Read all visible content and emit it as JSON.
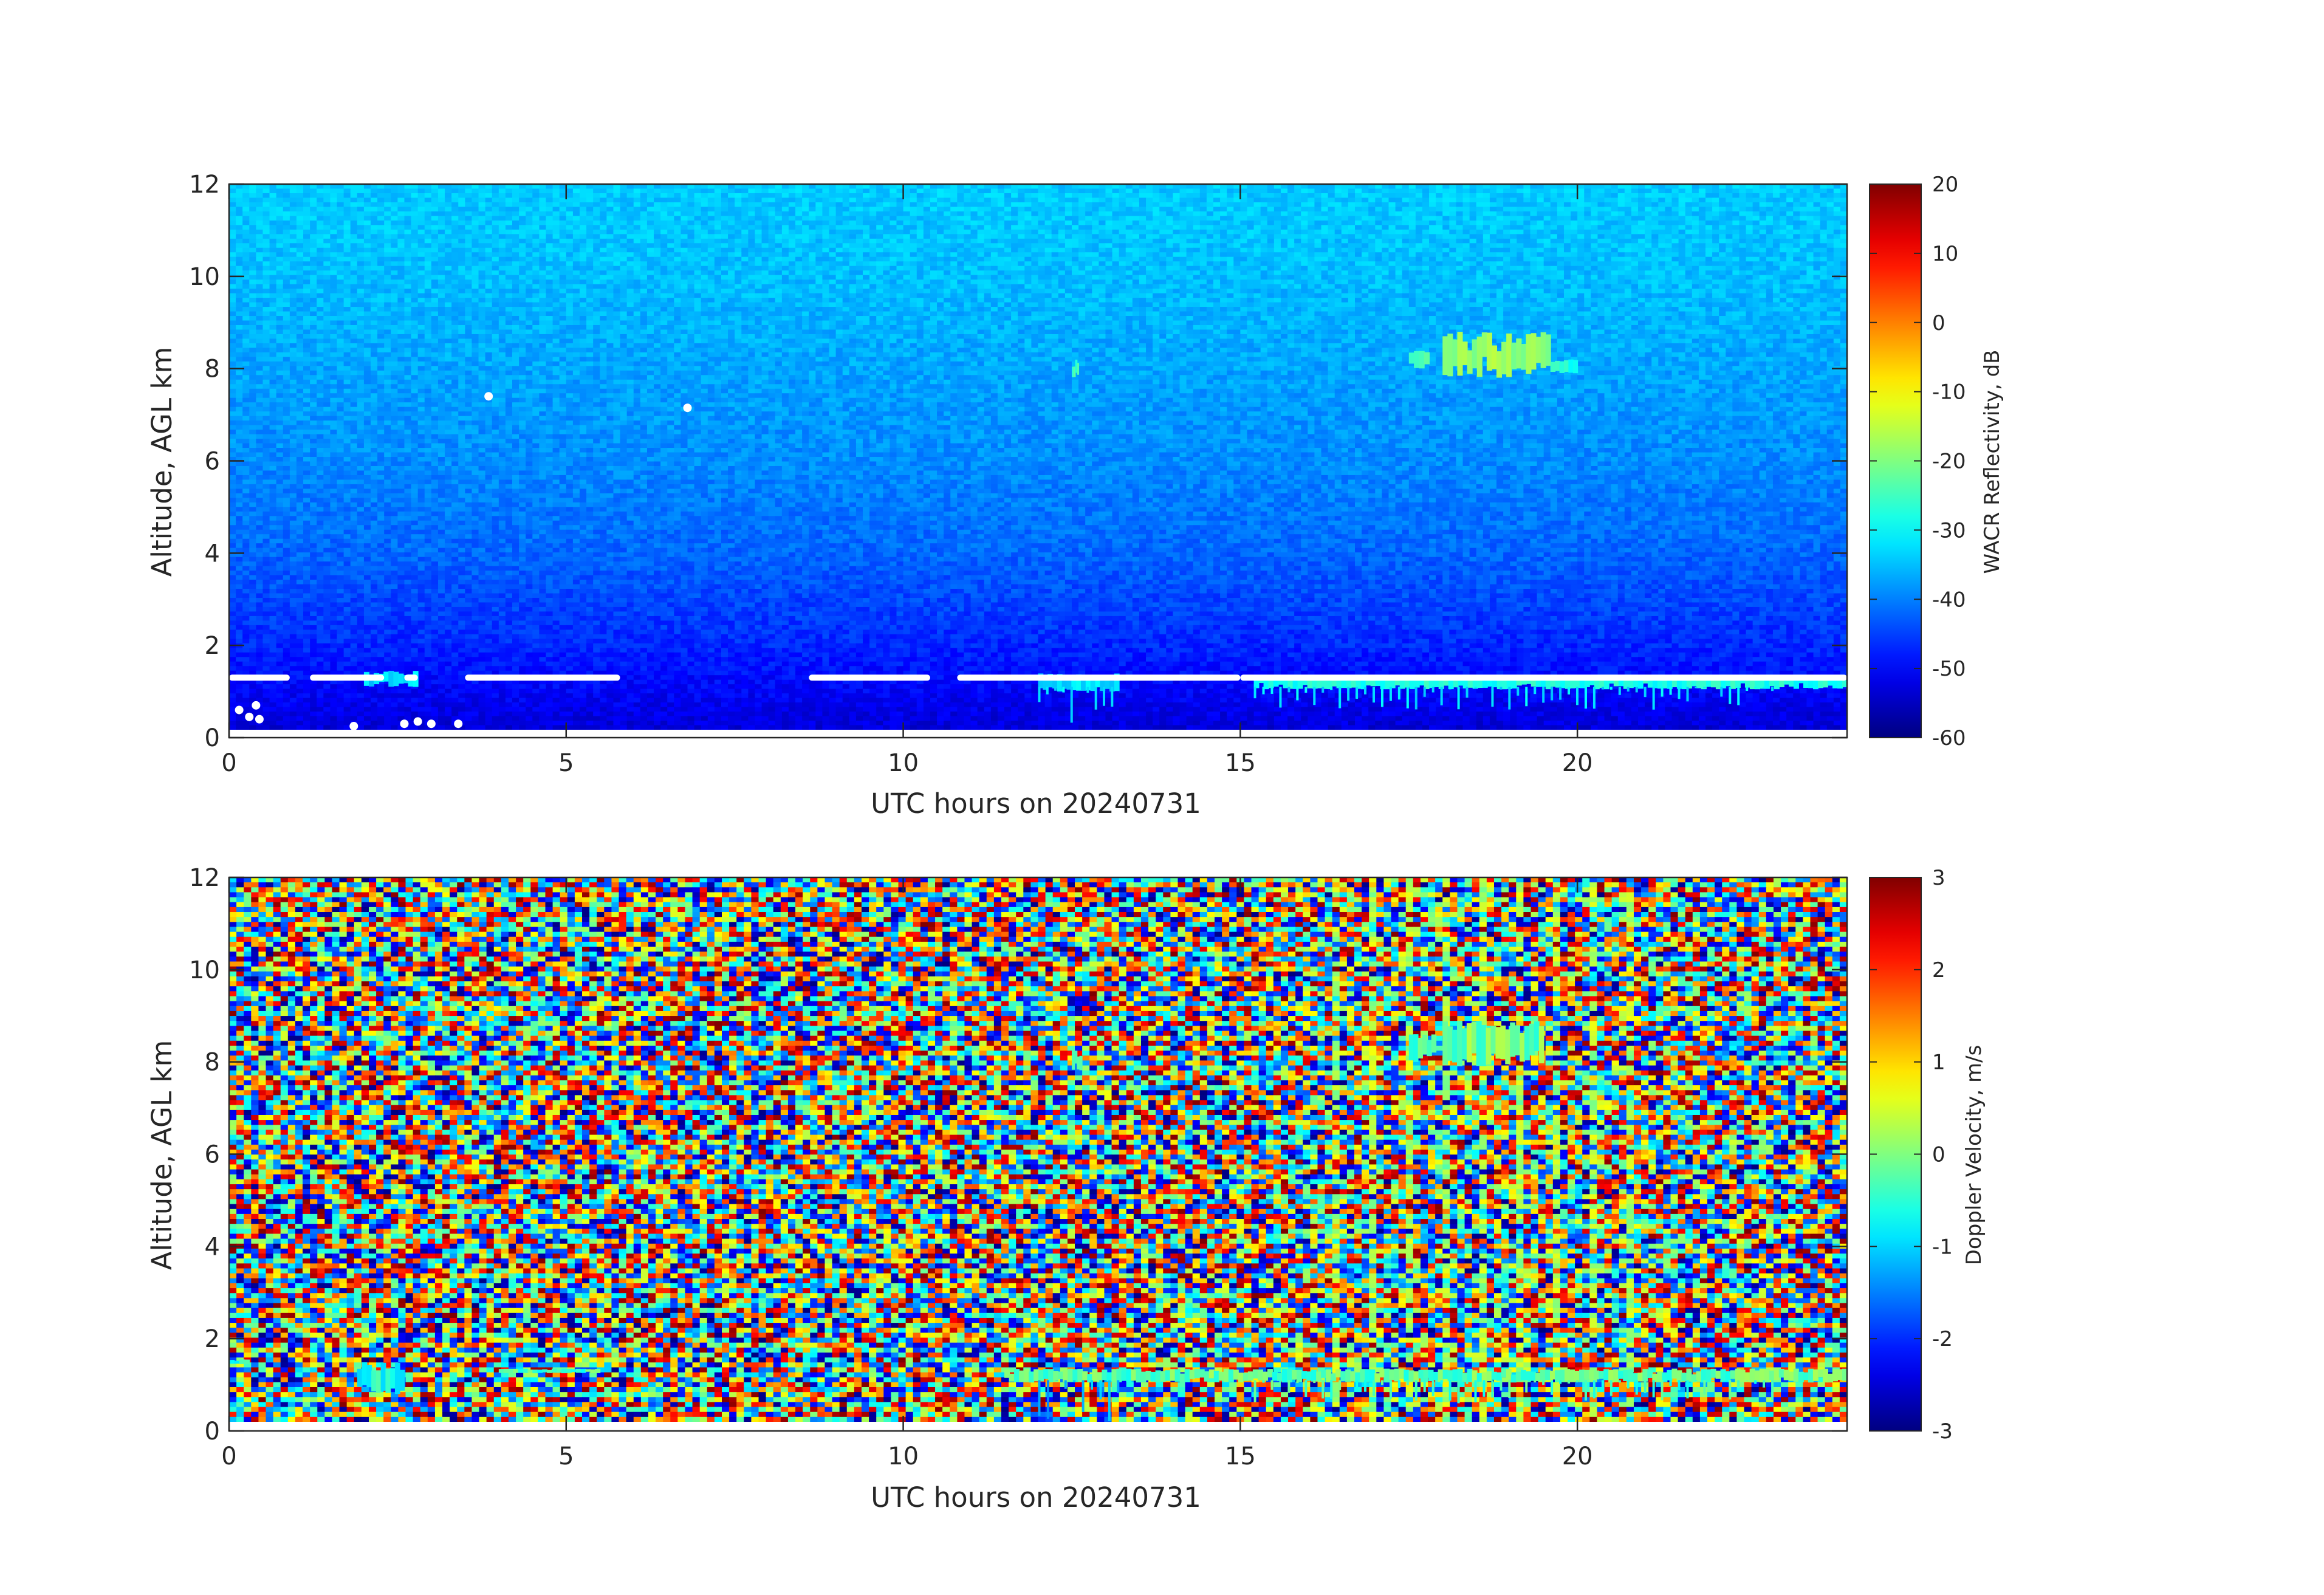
{
  "chart_data": [
    {
      "type": "heatmap",
      "panel": "top",
      "xlabel": "UTC hours on 20240731",
      "ylabel": "Altitude, AGL km",
      "xlim": [
        0,
        24
      ],
      "ylim": [
        0,
        12
      ],
      "xticks": [
        0,
        5,
        10,
        15,
        20
      ],
      "yticks": [
        0,
        2,
        4,
        6,
        8,
        10,
        12
      ],
      "colorbar": {
        "label": "WACR Reflectivity, dB",
        "limits": [
          -60,
          20
        ],
        "ticks": [
          -60,
          -50,
          -40,
          -30,
          -20,
          -10,
          0,
          10,
          20
        ],
        "colormap": "jet"
      },
      "background": {
        "description_values_db": [
          {
            "altitude_km": 0.2,
            "reflectivity_db": -53
          },
          {
            "altitude_km": 2,
            "reflectivity_db": -47
          },
          {
            "altitude_km": 4,
            "reflectivity_db": -42
          },
          {
            "altitude_km": 6,
            "reflectivity_db": -39
          },
          {
            "altitude_km": 8,
            "reflectivity_db": -37
          },
          {
            "altitude_km": 10,
            "reflectivity_db": -35
          },
          {
            "altitude_km": 12,
            "reflectivity_db": -34
          }
        ]
      },
      "features": [
        {
          "kind": "cloud_layer",
          "x_range": [
            2.0,
            2.8
          ],
          "y_range": [
            1.1,
            1.45
          ],
          "value_db": -33
        },
        {
          "kind": "cloud_layer",
          "x_range": [
            12.0,
            13.2
          ],
          "y_range": [
            1.0,
            1.4
          ],
          "value_db": -32
        },
        {
          "kind": "cloud_layer",
          "x_range": [
            15.2,
            24.0
          ],
          "y_range": [
            1.05,
            1.35
          ],
          "value_db": -28
        },
        {
          "kind": "precip_streaks",
          "x_range": [
            12.0,
            13.2
          ],
          "y_range": [
            0.1,
            1.1
          ],
          "value_db": -32
        },
        {
          "kind": "precip_streaks",
          "x_range": [
            15.2,
            23.0
          ],
          "y_range": [
            0.6,
            1.1
          ],
          "value_db": -32
        },
        {
          "kind": "cirrus",
          "x_range": [
            12.5,
            12.6
          ],
          "y_range": [
            7.8,
            8.2
          ],
          "value_db": -25
        },
        {
          "kind": "cirrus",
          "x_range": [
            17.5,
            17.8
          ],
          "y_range": [
            8.0,
            8.4
          ],
          "value_db": -24
        },
        {
          "kind": "cirrus",
          "x_range": [
            18.0,
            19.6
          ],
          "y_range": [
            7.8,
            8.8
          ],
          "value_db": -18
        },
        {
          "kind": "cirrus",
          "x_range": [
            19.6,
            20.0
          ],
          "y_range": [
            7.9,
            8.2
          ],
          "value_db": -28
        },
        {
          "kind": "missing_data_band",
          "segments_hours": [
            [
              0,
              0.9
            ],
            [
              1.2,
              2.3
            ],
            [
              2.6,
              2.8
            ],
            [
              3.5,
              5.8
            ],
            [
              8.6,
              10.4
            ],
            [
              10.8,
              15.0
            ],
            [
              15.0,
              24.0
            ]
          ],
          "altitude_km": 1.3
        },
        {
          "kind": "missing_data_points",
          "points": [
            [
              0.15,
              0.6
            ],
            [
              0.3,
              0.45
            ],
            [
              0.4,
              0.7
            ],
            [
              0.45,
              0.4
            ],
            [
              1.85,
              0.25
            ],
            [
              2.6,
              0.3
            ],
            [
              2.8,
              0.35
            ],
            [
              3.0,
              0.3
            ],
            [
              3.4,
              0.3
            ],
            [
              3.85,
              7.4
            ],
            [
              6.8,
              7.15
            ]
          ]
        }
      ]
    },
    {
      "type": "heatmap",
      "panel": "bottom",
      "xlabel": "UTC hours on 20240731",
      "ylabel": "Altitude, AGL km",
      "xlim": [
        0,
        24
      ],
      "ylim": [
        0,
        12
      ],
      "xticks": [
        0,
        5,
        10,
        15,
        20
      ],
      "yticks": [
        0,
        2,
        4,
        6,
        8,
        10,
        12
      ],
      "colorbar": {
        "label": "Doppler Velocity, m/s",
        "limits": [
          -3,
          3
        ],
        "ticks": [
          -3,
          -2,
          -1,
          0,
          1,
          2,
          3
        ],
        "colormap": "jet"
      },
      "background": {
        "kind": "noise",
        "value_range_ms": [
          -3,
          3
        ]
      },
      "features": [
        {
          "kind": "cloud_layer",
          "x_range": [
            0.0,
            0.3
          ],
          "y_range": [
            1.45,
            1.55
          ],
          "value_ms": -0.4
        },
        {
          "kind": "cloud_layer",
          "x_range": [
            1.9,
            2.6
          ],
          "y_range": [
            0.8,
            1.5
          ],
          "value_ms": -0.6
        },
        {
          "kind": "cloud_layer",
          "x_range": [
            4.0,
            5.5
          ],
          "y_range": [
            1.25,
            1.35
          ],
          "value_ms": -0.3
        },
        {
          "kind": "cloud_layer",
          "x_range": [
            11.5,
            24.0
          ],
          "y_range": [
            1.05,
            1.35
          ],
          "value_ms": -0.2
        },
        {
          "kind": "precip_streaks",
          "x_range": [
            12.0,
            13.3
          ],
          "y_range": [
            0.1,
            1.1
          ],
          "value_ms": -1.2
        },
        {
          "kind": "precip_streaks",
          "x_range": [
            15.2,
            23.0
          ],
          "y_range": [
            0.6,
            1.1
          ],
          "value_ms": -0.4
        },
        {
          "kind": "cirrus",
          "x_range": [
            12.5,
            12.65
          ],
          "y_range": [
            7.8,
            8.3
          ],
          "value_ms": -0.6
        },
        {
          "kind": "cirrus",
          "x_range": [
            17.5,
            17.9
          ],
          "y_range": [
            8.0,
            8.6
          ],
          "value_ms": -0.4
        },
        {
          "kind": "cirrus",
          "x_range": [
            18.0,
            19.5
          ],
          "y_range": [
            7.9,
            8.9
          ],
          "value_ms": -0.1
        },
        {
          "kind": "vertical_streaks",
          "x_range": [
            16.0,
            21.0
          ],
          "y_range": [
            0.2,
            12.0
          ],
          "value_ms": 0.3
        }
      ]
    }
  ]
}
